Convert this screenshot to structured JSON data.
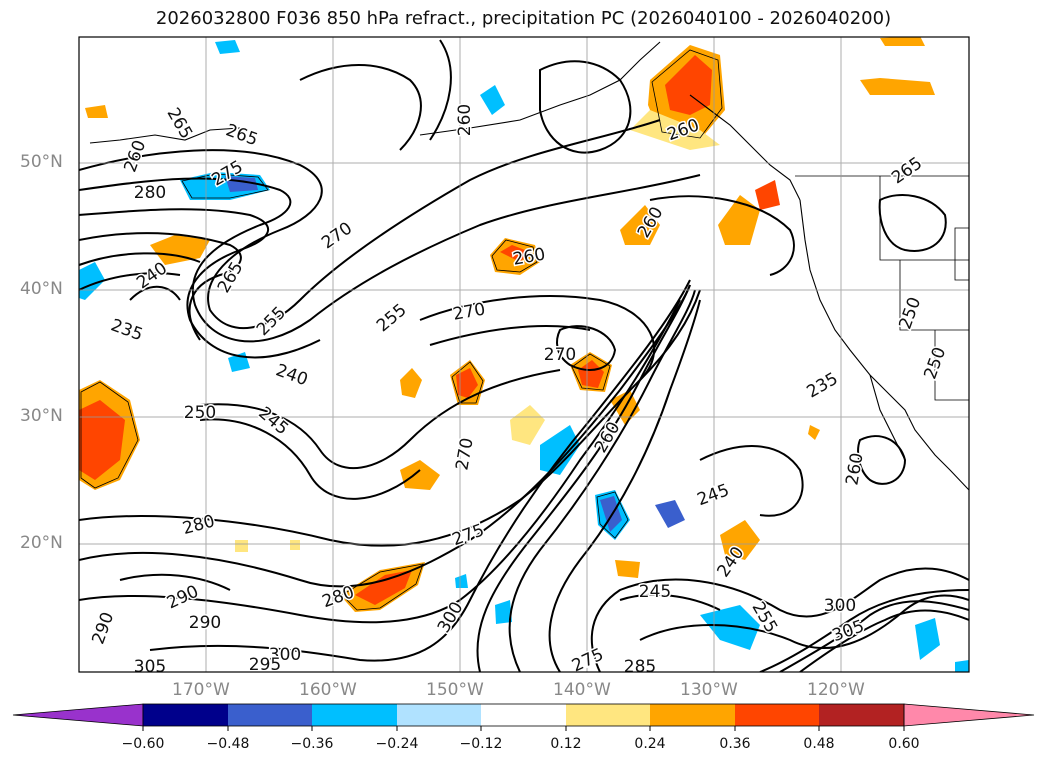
{
  "title": "2026032800 F036 850 hPa refract., precipitation PC (2026040100 - 2026040200)",
  "map": {
    "lat_labels": [
      "50°N",
      "40°N",
      "30°N",
      "20°N"
    ],
    "lon_labels": [
      "170°W",
      "160°W",
      "150°W",
      "140°W",
      "130°W",
      "120°W"
    ],
    "contour_labels": [
      {
        "t": "265"
      },
      {
        "t": "265"
      },
      {
        "t": "260"
      },
      {
        "t": "280"
      },
      {
        "t": "275"
      },
      {
        "t": "270"
      },
      {
        "t": "265"
      },
      {
        "t": "240"
      },
      {
        "t": "235"
      },
      {
        "t": "255"
      },
      {
        "t": "255"
      },
      {
        "t": "240"
      },
      {
        "t": "250"
      },
      {
        "t": "245"
      },
      {
        "t": "270"
      },
      {
        "t": "260"
      },
      {
        "t": "260"
      },
      {
        "t": "270"
      },
      {
        "t": "260"
      },
      {
        "t": "260"
      },
      {
        "t": "260"
      },
      {
        "t": "265"
      },
      {
        "t": "250"
      },
      {
        "t": "250"
      },
      {
        "t": "235"
      },
      {
        "t": "280"
      },
      {
        "t": "275"
      },
      {
        "t": "290"
      },
      {
        "t": "290"
      },
      {
        "t": "290"
      },
      {
        "t": "280"
      },
      {
        "t": "300"
      },
      {
        "t": "300"
      },
      {
        "t": "295"
      },
      {
        "t": "305"
      },
      {
        "t": "245"
      },
      {
        "t": "240"
      },
      {
        "t": "245"
      },
      {
        "t": "255"
      },
      {
        "t": "285"
      },
      {
        "t": "275"
      },
      {
        "t": "305"
      },
      {
        "t": "300"
      },
      {
        "t": "270"
      },
      {
        "t": "260"
      }
    ]
  },
  "colorbar": {
    "ticks": [
      "−0.60",
      "−0.48",
      "−0.36",
      "−0.24",
      "−0.12",
      "0.12",
      "0.24",
      "0.36",
      "0.48",
      "0.60"
    ],
    "colors": [
      "#9932cc",
      "#00008b",
      "#3a5fcd",
      "#00bfff",
      "#b0e2ff",
      "#ffffff",
      "#ffe680",
      "#ffa500",
      "#ff4500",
      "#b22222",
      "#ff88aa"
    ]
  }
}
